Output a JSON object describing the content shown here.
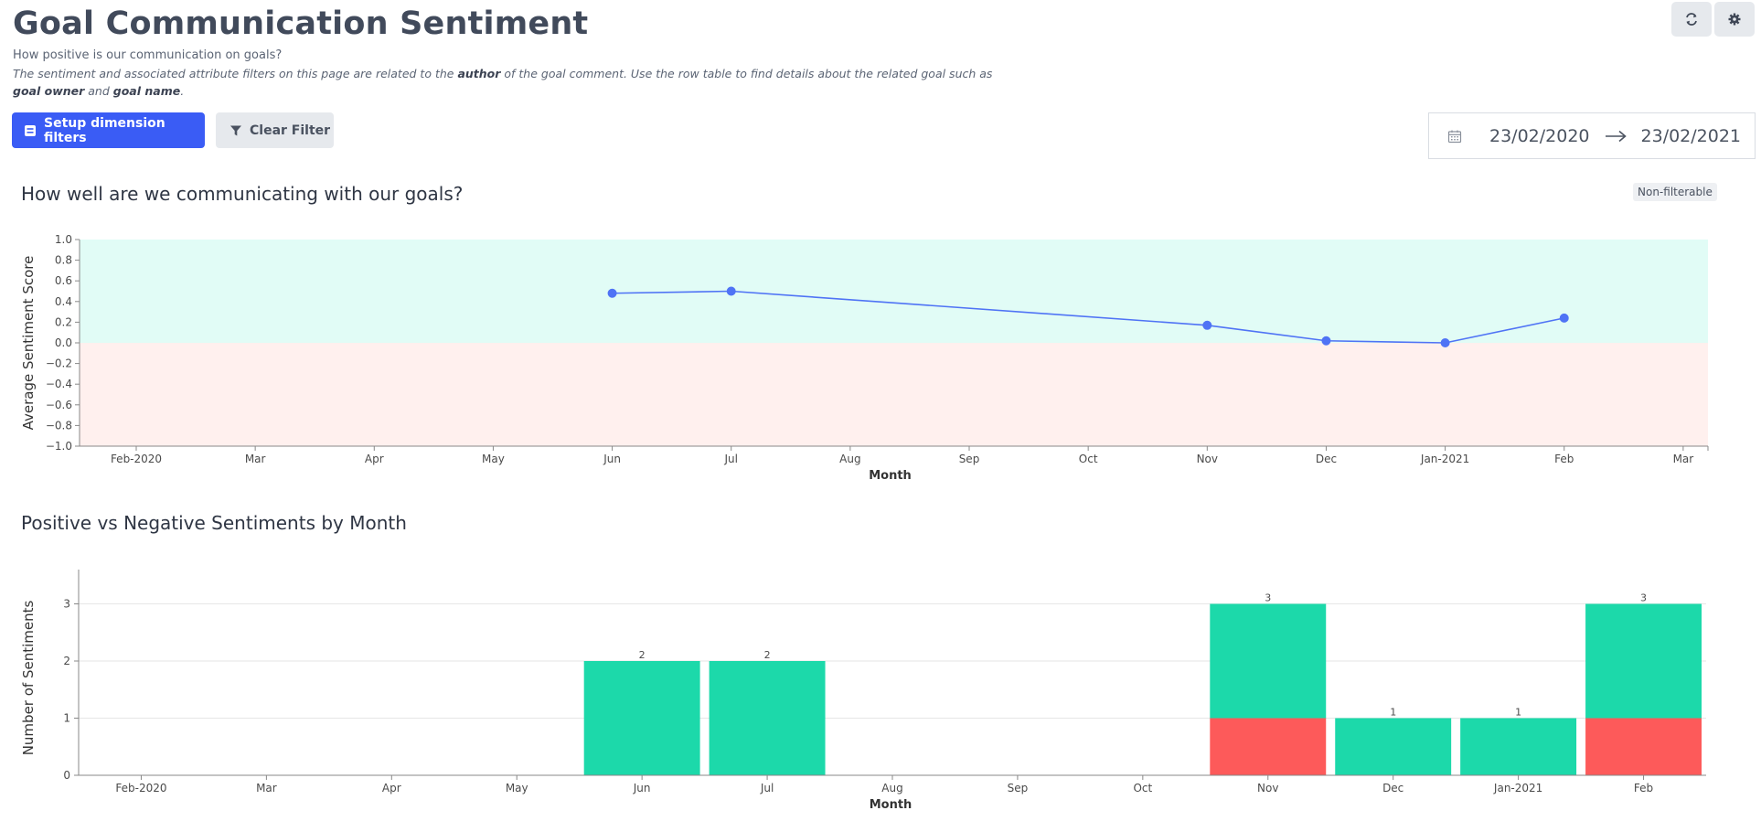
{
  "page": {
    "title": "Goal Communication Sentiment",
    "subtitle": "How positive is our communication on goals?",
    "description_parts": [
      "The sentiment and associated attribute filters on this page are related to the ",
      "author",
      " of the goal comment. Use the row table to find details about the related goal such as ",
      "goal owner",
      " and ",
      "goal name",
      "."
    ]
  },
  "toolbar": {
    "setup_label": "Setup dimension filters",
    "clear_label": "Clear Filter",
    "refresh_icon": "refresh-icon",
    "settings_icon": "gear-icon"
  },
  "date_range": {
    "start": "23/02/2020",
    "end": "23/02/2021",
    "icon": "calendar-icon"
  },
  "colors": {
    "accent": "#3a5cf5",
    "line": "#4f73f5",
    "positive_band": "#e1fcf6",
    "negative_band": "#fff0ee",
    "positive_bar": "#1cd9aa",
    "negative_bar": "#fd5a5a"
  },
  "chart_data": [
    {
      "type": "line",
      "title": "How well are we communicating with our goals?",
      "badge": "Non-filterable",
      "xlabel": "Month",
      "ylabel": "Average Sentiment Score",
      "ylim": [
        -1.0,
        1.0
      ],
      "yticks": [
        "1.0",
        "0.8",
        "0.6",
        "0.4",
        "0.2",
        "0.0",
        "−0.2",
        "−0.4",
        "−0.6",
        "−0.8",
        "−1.0"
      ],
      "categories": [
        "Feb-2020",
        "Mar",
        "Apr",
        "May",
        "Jun",
        "Jul",
        "Aug",
        "Sep",
        "Oct",
        "Nov",
        "Dec",
        "Jan-2021",
        "Feb",
        "Mar"
      ],
      "points": [
        {
          "x": "Jun",
          "y": 0.48
        },
        {
          "x": "Jul",
          "y": 0.5
        },
        {
          "x": "Nov",
          "y": 0.17
        },
        {
          "x": "Dec",
          "y": 0.02
        },
        {
          "x": "Jan-2021",
          "y": 0.0
        },
        {
          "x": "Feb",
          "y": 0.24
        }
      ],
      "background_bands": [
        {
          "from": 0,
          "to": 1.0,
          "meaning": "positive"
        },
        {
          "from": -1.0,
          "to": 0,
          "meaning": "negative"
        }
      ],
      "grid": false
    },
    {
      "type": "bar",
      "stacked": true,
      "title": "Positive vs Negative Sentiments by Month",
      "xlabel": "Month",
      "ylabel": "Number of Sentiments",
      "ylim": [
        0,
        3.6
      ],
      "yticks": [
        "0",
        "1",
        "2",
        "3"
      ],
      "categories": [
        "Feb-2020",
        "Mar",
        "Apr",
        "May",
        "Jun",
        "Jul",
        "Aug",
        "Sep",
        "Oct",
        "Nov",
        "Dec",
        "Jan-2021",
        "Feb"
      ],
      "series": [
        {
          "values": [
            0,
            0,
            0,
            0,
            0,
            0,
            0,
            0,
            0,
            1,
            0,
            0,
            1
          ]
        },
        {
          "values": [
            0,
            0,
            0,
            0,
            2,
            2,
            0,
            0,
            0,
            2,
            1,
            1,
            2
          ]
        }
      ],
      "totals": [
        0,
        0,
        0,
        0,
        2,
        2,
        0,
        0,
        0,
        3,
        1,
        1,
        3
      ],
      "grid": true
    }
  ]
}
